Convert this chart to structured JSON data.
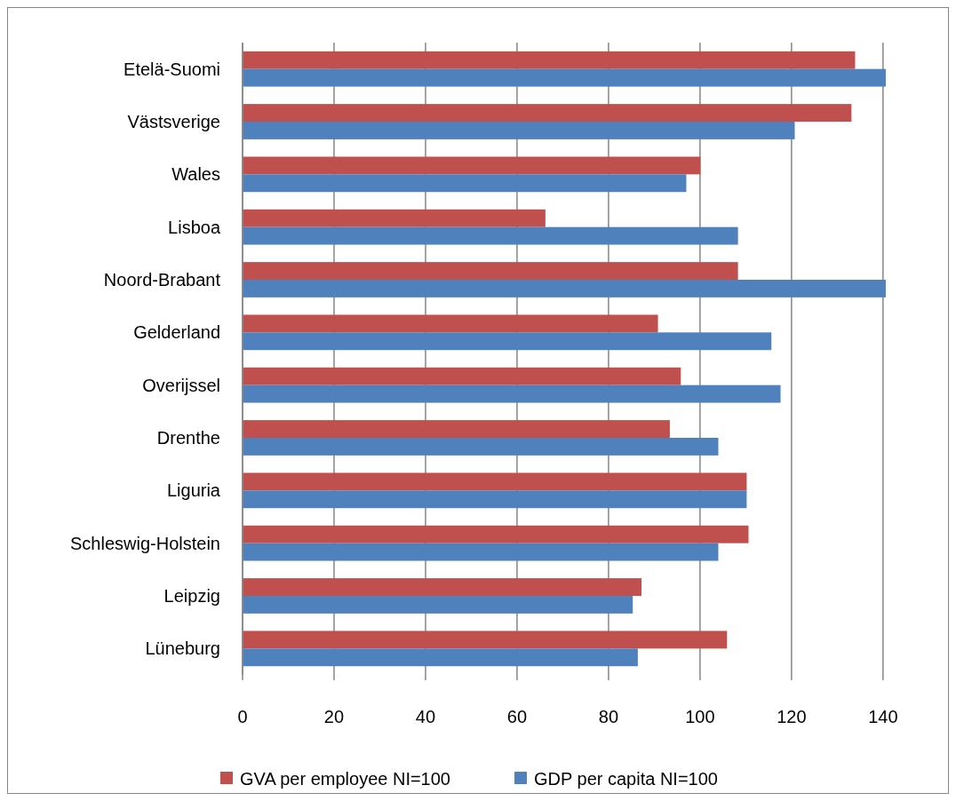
{
  "chart_data": {
    "type": "bar",
    "orientation": "horizontal",
    "categories": [
      "Etelä-Suomi",
      "Västsverige",
      "Wales",
      "Lisboa",
      "Noord-Brabant",
      "Gelderland",
      "Overijssel",
      "Drenthe",
      "Liguria",
      "Schleswig-Holstein",
      "Leipzig",
      "Lüneburg"
    ],
    "series": [
      {
        "name": "GVA per employee NI=100",
        "color": "#c0504d",
        "values": [
          133.9,
          133.1,
          100.1,
          66.2,
          108.3,
          90.8,
          95.8,
          93.4,
          110.2,
          110.6,
          87.2,
          105.9
        ]
      },
      {
        "name": "GDP per capita NI=100",
        "color": "#4f81bd",
        "values": [
          140.6,
          120.7,
          97.0,
          108.3,
          140.6,
          115.6,
          117.6,
          104.0,
          110.2,
          104.0,
          85.3,
          86.4
        ]
      }
    ],
    "xlim": [
      0,
      141
    ],
    "xticks": [
      0,
      20,
      40,
      60,
      80,
      100,
      120,
      140
    ],
    "grid": "x",
    "legend": "bottom"
  }
}
